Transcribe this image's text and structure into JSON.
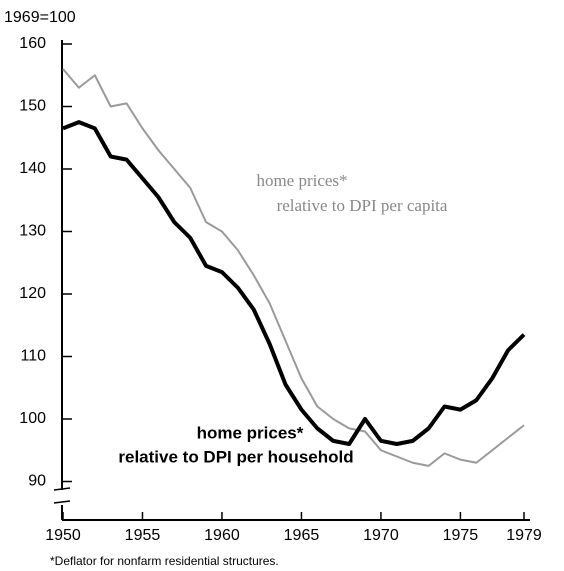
{
  "chart_data": {
    "type": "line",
    "y_label": "1969=100",
    "footnote": "*Deflator for nonfarm residential structures.",
    "x": [
      1950,
      1951,
      1952,
      1953,
      1954,
      1955,
      1956,
      1957,
      1958,
      1959,
      1960,
      1961,
      1962,
      1963,
      1964,
      1965,
      1966,
      1967,
      1968,
      1969,
      1970,
      1971,
      1972,
      1973,
      1974,
      1975,
      1976,
      1977,
      1978,
      1979
    ],
    "series": [
      {
        "labels": [
          "home prices*",
          "relative to DPI per capita"
        ],
        "color": "#9a9a9a",
        "values": [
          156,
          153,
          155,
          150,
          150.5,
          146.5,
          143,
          140,
          137,
          131.5,
          130,
          127,
          123,
          118.5,
          112.5,
          106.5,
          102,
          100,
          98.5,
          98,
          95,
          94,
          93,
          92.5,
          94.5,
          93.5,
          93,
          95,
          97,
          99
        ]
      },
      {
        "labels": [
          "home prices*",
          "relative to DPI per household"
        ],
        "color": "#000000",
        "values": [
          146.5,
          147.5,
          146.5,
          142,
          141.5,
          138.5,
          135.5,
          131.5,
          129,
          124.5,
          123.5,
          121,
          117.5,
          112,
          105.5,
          101.5,
          98.5,
          96.5,
          96,
          100,
          96.5,
          96,
          96.5,
          98.5,
          102,
          101.5,
          103,
          106.5,
          111,
          113.5
        ]
      }
    ],
    "xlim": [
      1950,
      1979
    ],
    "xticks": [
      1950,
      1955,
      1960,
      1965,
      1970,
      1975,
      1979
    ],
    "ylim": [
      88,
      160
    ],
    "yticks": [
      90,
      100,
      110,
      120,
      130,
      140,
      150,
      160
    ]
  }
}
